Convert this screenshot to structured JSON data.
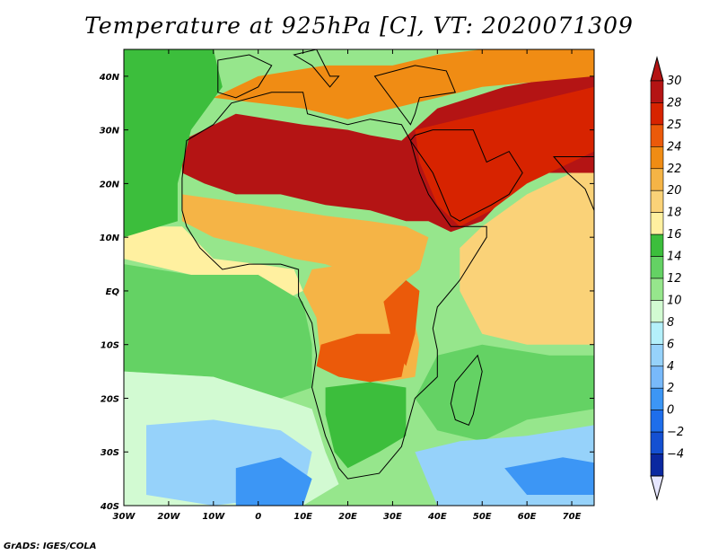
{
  "title": "Temperature at 925hPa [C], VT: 2020071309",
  "credit": "GrADS: IGES/COLA",
  "map": {
    "projection": "latlon",
    "lon_range": [
      -30,
      75
    ],
    "lat_range": [
      -40,
      45
    ],
    "x_ticks": [
      {
        "lon": -30,
        "label": "30W"
      },
      {
        "lon": -20,
        "label": "20W"
      },
      {
        "lon": -10,
        "label": "10W"
      },
      {
        "lon": 0,
        "label": "0"
      },
      {
        "lon": 10,
        "label": "10E"
      },
      {
        "lon": 20,
        "label": "20E"
      },
      {
        "lon": 30,
        "label": "30E"
      },
      {
        "lon": 40,
        "label": "40E"
      },
      {
        "lon": 50,
        "label": "50E"
      },
      {
        "lon": 60,
        "label": "60E"
      },
      {
        "lon": 70,
        "label": "70E"
      }
    ],
    "y_ticks": [
      {
        "lat": 40,
        "label": "40N"
      },
      {
        "lat": 30,
        "label": "30N"
      },
      {
        "lat": 20,
        "label": "20N"
      },
      {
        "lat": 10,
        "label": "10N"
      },
      {
        "lat": 0,
        "label": "EQ"
      },
      {
        "lat": -10,
        "label": "10S"
      },
      {
        "lat": -20,
        "label": "20S"
      },
      {
        "lat": -30,
        "label": "30S"
      },
      {
        "lat": -40,
        "label": "40S"
      }
    ]
  },
  "colorbar": {
    "levels": [
      {
        "label": "30",
        "color": "#b41414"
      },
      {
        "label": "28",
        "color": "#d72300"
      },
      {
        "label": "25",
        "color": "#eb5a0a"
      },
      {
        "label": "24",
        "color": "#f08c14"
      },
      {
        "label": "22",
        "color": "#f5b446"
      },
      {
        "label": "20",
        "color": "#fad278"
      },
      {
        "label": "18",
        "color": "#fff0a0"
      },
      {
        "label": "16",
        "color": "#3cbe3c"
      },
      {
        "label": "14",
        "color": "#64d264"
      },
      {
        "label": "12",
        "color": "#96e68c"
      },
      {
        "label": "10",
        "color": "#d2fad2"
      },
      {
        "label": "8",
        "color": "#b4f0fa"
      },
      {
        "label": "6",
        "color": "#96d2fa"
      },
      {
        "label": "4",
        "color": "#78b9fa"
      },
      {
        "label": "2",
        "color": "#3c96f5"
      },
      {
        "label": "0",
        "color": "#1e6eeb"
      },
      {
        "label": "−2",
        "color": "#1450d2"
      },
      {
        "label": "−4",
        "color": "#0a28a0"
      }
    ],
    "top_color": "#b41414",
    "bottom_color": "#e6e6ff"
  },
  "regions": [
    {
      "name": "sahara-hot",
      "level": "30",
      "color": "#b41414",
      "points": [
        [
          -17,
          28
        ],
        [
          -5,
          33
        ],
        [
          10,
          31
        ],
        [
          20,
          30
        ],
        [
          25,
          29
        ],
        [
          32,
          28
        ],
        [
          40,
          34
        ],
        [
          55,
          38
        ],
        [
          75,
          41
        ],
        [
          75,
          22
        ],
        [
          60,
          22
        ],
        [
          50,
          13
        ],
        [
          43,
          11
        ],
        [
          38,
          13
        ],
        [
          33,
          13
        ],
        [
          25,
          15
        ],
        [
          15,
          16
        ],
        [
          5,
          18
        ],
        [
          -5,
          18
        ],
        [
          -12,
          20
        ],
        [
          -17,
          22
        ]
      ]
    },
    {
      "name": "arabia-hot",
      "level": "28",
      "color": "#d72300",
      "points": [
        [
          35,
          30
        ],
        [
          45,
          32
        ],
        [
          60,
          35
        ],
        [
          75,
          38
        ],
        [
          75,
          26
        ],
        [
          60,
          20
        ],
        [
          52,
          15
        ],
        [
          45,
          12
        ],
        [
          40,
          16
        ],
        [
          36,
          24
        ]
      ]
    },
    {
      "name": "mediterranean-warm",
      "level": "24",
      "color": "#f08c14",
      "points": [
        [
          -10,
          36
        ],
        [
          0,
          40
        ],
        [
          15,
          42
        ],
        [
          30,
          42
        ],
        [
          40,
          44
        ],
        [
          50,
          45
        ],
        [
          75,
          45
        ],
        [
          75,
          40
        ],
        [
          50,
          38
        ],
        [
          35,
          35
        ],
        [
          20,
          32
        ],
        [
          10,
          34
        ],
        [
          0,
          35
        ]
      ]
    },
    {
      "name": "sahel-warm",
      "level": "22",
      "color": "#f5b446",
      "points": [
        [
          -17,
          18
        ],
        [
          0,
          16
        ],
        [
          15,
          14
        ],
        [
          25,
          13
        ],
        [
          33,
          12
        ],
        [
          38,
          10
        ],
        [
          36,
          4
        ],
        [
          30,
          0
        ],
        [
          25,
          2
        ],
        [
          15,
          5
        ],
        [
          8,
          6
        ],
        [
          0,
          8
        ],
        [
          -10,
          10
        ],
        [
          -17,
          13
        ]
      ]
    },
    {
      "name": "central-africa",
      "level": "22",
      "color": "#f5b446",
      "points": [
        [
          12,
          4
        ],
        [
          20,
          5
        ],
        [
          30,
          3
        ],
        [
          34,
          -2
        ],
        [
          36,
          -10
        ],
        [
          35,
          -16
        ],
        [
          28,
          -17
        ],
        [
          20,
          -16
        ],
        [
          14,
          -13
        ],
        [
          13,
          -5
        ],
        [
          10,
          0
        ]
      ]
    },
    {
      "name": "angola-hot",
      "level": "25",
      "color": "#eb5a0a",
      "points": [
        [
          14,
          -10
        ],
        [
          22,
          -8
        ],
        [
          30,
          -8
        ],
        [
          33,
          -12
        ],
        [
          32,
          -16
        ],
        [
          25,
          -17
        ],
        [
          18,
          -16
        ],
        [
          13,
          -14
        ]
      ]
    },
    {
      "name": "east-africa-warm",
      "level": "25",
      "color": "#eb5a0a",
      "points": [
        [
          28,
          -2
        ],
        [
          33,
          2
        ],
        [
          36,
          0
        ],
        [
          35,
          -8
        ],
        [
          33,
          -14
        ],
        [
          30,
          -10
        ]
      ]
    },
    {
      "name": "arabian-sea",
      "level": "20",
      "color": "#fad278",
      "points": [
        [
          50,
          12
        ],
        [
          60,
          18
        ],
        [
          70,
          22
        ],
        [
          75,
          22
        ],
        [
          75,
          -10
        ],
        [
          60,
          -10
        ],
        [
          50,
          -8
        ],
        [
          45,
          0
        ],
        [
          45,
          8
        ]
      ]
    },
    {
      "name": "guinea-coast",
      "level": "18",
      "color": "#fff0a0",
      "points": [
        [
          -30,
          12
        ],
        [
          -17,
          12
        ],
        [
          -10,
          6
        ],
        [
          0,
          5
        ],
        [
          8,
          4
        ],
        [
          10,
          0
        ],
        [
          5,
          -2
        ],
        [
          -5,
          0
        ],
        [
          -15,
          3
        ],
        [
          -30,
          6
        ]
      ]
    },
    {
      "name": "atlantic-north",
      "level": "16",
      "color": "#3cbe3c",
      "points": [
        [
          -30,
          45
        ],
        [
          -10,
          45
        ],
        [
          -8,
          38
        ],
        [
          -15,
          30
        ],
        [
          -18,
          20
        ],
        [
          -18,
          13
        ],
        [
          -30,
          10
        ]
      ]
    },
    {
      "name": "atlantic-equatorial",
      "level": "14",
      "color": "#64d264",
      "points": [
        [
          -30,
          5
        ],
        [
          -15,
          3
        ],
        [
          0,
          3
        ],
        [
          10,
          -2
        ],
        [
          12,
          -10
        ],
        [
          12,
          -18
        ],
        [
          5,
          -20
        ],
        [
          -10,
          -16
        ],
        [
          -30,
          -15
        ]
      ]
    },
    {
      "name": "indian-ocean",
      "level": "14",
      "color": "#64d264",
      "points": [
        [
          40,
          -12
        ],
        [
          50,
          -10
        ],
        [
          65,
          -12
        ],
        [
          75,
          -12
        ],
        [
          75,
          -22
        ],
        [
          60,
          -24
        ],
        [
          50,
          -28
        ],
        [
          40,
          -26
        ],
        [
          35,
          -20
        ]
      ]
    },
    {
      "name": "southern-africa",
      "level": "16",
      "color": "#3cbe3c",
      "points": [
        [
          15,
          -18
        ],
        [
          25,
          -17
        ],
        [
          33,
          -18
        ],
        [
          33,
          -27
        ],
        [
          27,
          -30
        ],
        [
          20,
          -33
        ],
        [
          17,
          -30
        ],
        [
          15,
          -23
        ]
      ]
    },
    {
      "name": "south-atlantic-cool",
      "level": "10",
      "color": "#d2fad2",
      "points": [
        [
          -30,
          -15
        ],
        [
          -10,
          -16
        ],
        [
          5,
          -20
        ],
        [
          12,
          -22
        ],
        [
          15,
          -30
        ],
        [
          18,
          -36
        ],
        [
          10,
          -40
        ],
        [
          -30,
          -40
        ]
      ]
    },
    {
      "name": "south-atlantic-cold",
      "level": "6",
      "color": "#96d2fa",
      "points": [
        [
          -25,
          -25
        ],
        [
          -10,
          -24
        ],
        [
          5,
          -26
        ],
        [
          12,
          -30
        ],
        [
          10,
          -38
        ],
        [
          -10,
          -40
        ],
        [
          -25,
          -38
        ]
      ]
    },
    {
      "name": "south-atlantic-colder",
      "level": "2",
      "color": "#3c96f5",
      "points": [
        [
          -5,
          -33
        ],
        [
          5,
          -31
        ],
        [
          12,
          -35
        ],
        [
          10,
          -40
        ],
        [
          -5,
          -40
        ]
      ]
    },
    {
      "name": "south-indian-cold",
      "level": "6",
      "color": "#96d2fa",
      "points": [
        [
          35,
          -30
        ],
        [
          45,
          -28
        ],
        [
          60,
          -27
        ],
        [
          75,
          -25
        ],
        [
          75,
          -40
        ],
        [
          40,
          -40
        ]
      ]
    },
    {
      "name": "south-indian-colder",
      "level": "2",
      "color": "#3c96f5",
      "points": [
        [
          55,
          -33
        ],
        [
          68,
          -31
        ],
        [
          75,
          -32
        ],
        [
          75,
          -38
        ],
        [
          60,
          -38
        ]
      ]
    }
  ],
  "coastlines": [
    {
      "name": "africa",
      "points": [
        [
          -17,
          21
        ],
        [
          -16,
          28
        ],
        [
          -10,
          31
        ],
        [
          -6,
          35
        ],
        [
          3,
          37
        ],
        [
          10,
          37
        ],
        [
          11,
          33
        ],
        [
          20,
          31
        ],
        [
          25,
          32
        ],
        [
          32,
          31
        ],
        [
          34,
          28
        ],
        [
          36,
          22
        ],
        [
          38,
          18
        ],
        [
          43,
          12
        ],
        [
          51,
          12
        ],
        [
          51,
          10
        ],
        [
          45,
          2
        ],
        [
          40,
          -3
        ],
        [
          39,
          -7
        ],
        [
          40,
          -11
        ],
        [
          40,
          -16
        ],
        [
          35,
          -20
        ],
        [
          33,
          -26
        ],
        [
          32,
          -29
        ],
        [
          27,
          -34
        ],
        [
          20,
          -35
        ],
        [
          18,
          -33
        ],
        [
          15,
          -27
        ],
        [
          12,
          -18
        ],
        [
          13,
          -12
        ],
        [
          12,
          -6
        ],
        [
          9,
          -1
        ],
        [
          9,
          4
        ],
        [
          5,
          5
        ],
        [
          -2,
          5
        ],
        [
          -8,
          4
        ],
        [
          -13,
          8
        ],
        [
          -16,
          12
        ],
        [
          -17,
          15
        ]
      ]
    },
    {
      "name": "madagascar",
      "points": [
        [
          49,
          -12
        ],
        [
          50,
          -15
        ],
        [
          48,
          -23
        ],
        [
          47,
          -25
        ],
        [
          44,
          -24
        ],
        [
          43,
          -21
        ],
        [
          44,
          -17
        ],
        [
          46,
          -15
        ]
      ]
    },
    {
      "name": "arabian-peninsula",
      "points": [
        [
          34,
          28
        ],
        [
          35,
          29
        ],
        [
          39,
          30
        ],
        [
          48,
          30
        ],
        [
          51,
          24
        ],
        [
          56,
          26
        ],
        [
          59,
          22
        ],
        [
          56,
          18
        ],
        [
          52,
          16
        ],
        [
          45,
          13
        ],
        [
          43,
          14
        ],
        [
          39,
          22
        ]
      ]
    },
    {
      "name": "iberia",
      "points": [
        [
          -9,
          37
        ],
        [
          -9,
          43
        ],
        [
          -2,
          44
        ],
        [
          3,
          42
        ],
        [
          0,
          38
        ],
        [
          -5,
          36
        ]
      ]
    },
    {
      "name": "italy",
      "points": [
        [
          8,
          44
        ],
        [
          13,
          45
        ],
        [
          16,
          40
        ],
        [
          18,
          40
        ],
        [
          16,
          38
        ],
        [
          12,
          42
        ]
      ]
    },
    {
      "name": "turkey-levant",
      "points": [
        [
          26,
          40
        ],
        [
          35,
          42
        ],
        [
          42,
          41
        ],
        [
          44,
          37
        ],
        [
          36,
          36
        ],
        [
          35,
          33
        ],
        [
          34,
          31
        ]
      ]
    },
    {
      "name": "india-west",
      "points": [
        [
          66,
          25
        ],
        [
          69,
          22
        ],
        [
          73,
          19
        ],
        [
          75,
          15
        ],
        [
          75,
          25
        ]
      ]
    }
  ]
}
